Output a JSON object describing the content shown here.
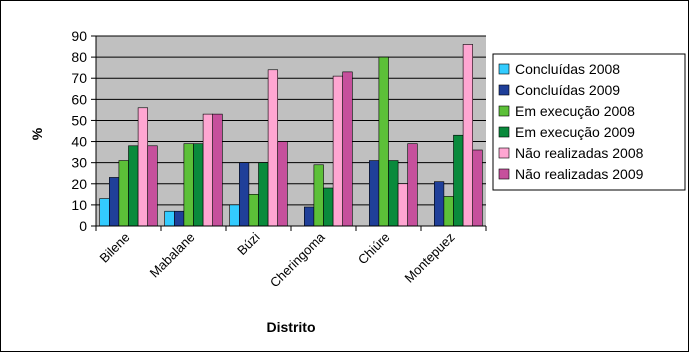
{
  "chart_data": {
    "type": "bar",
    "xlabel": "Distrito",
    "ylabel": "%",
    "ylim": [
      0,
      90
    ],
    "yticks": [
      0,
      10,
      20,
      30,
      40,
      50,
      60,
      70,
      80,
      90
    ],
    "grid": true,
    "legend_position": "right",
    "categories": [
      "Bilene",
      "Mabalane",
      "Búzi",
      "Cheringoma",
      "Chiúre",
      "Montepuez"
    ],
    "series": [
      {
        "name": "Concluídas 2008",
        "color": "#33CCFF",
        "values": [
          13,
          7,
          10,
          0,
          0,
          0
        ]
      },
      {
        "name": "Concluídas 2009",
        "color": "#1F3F99",
        "values": [
          23,
          7,
          30,
          9,
          31,
          21
        ]
      },
      {
        "name": "Em execução 2008",
        "color": "#5CC038",
        "values": [
          31,
          39,
          15,
          29,
          80,
          14
        ]
      },
      {
        "name": "Em execução 2009",
        "color": "#0A8A3C",
        "values": [
          38,
          39,
          30,
          18,
          31,
          43
        ]
      },
      {
        "name": "Não realizadas 2008",
        "color": "#FFA6D2",
        "values": [
          56,
          53,
          74,
          71,
          20,
          86
        ]
      },
      {
        "name": "Não realizadas 2009",
        "color": "#C6509C",
        "values": [
          38,
          53,
          40,
          73,
          39,
          36
        ]
      }
    ]
  }
}
